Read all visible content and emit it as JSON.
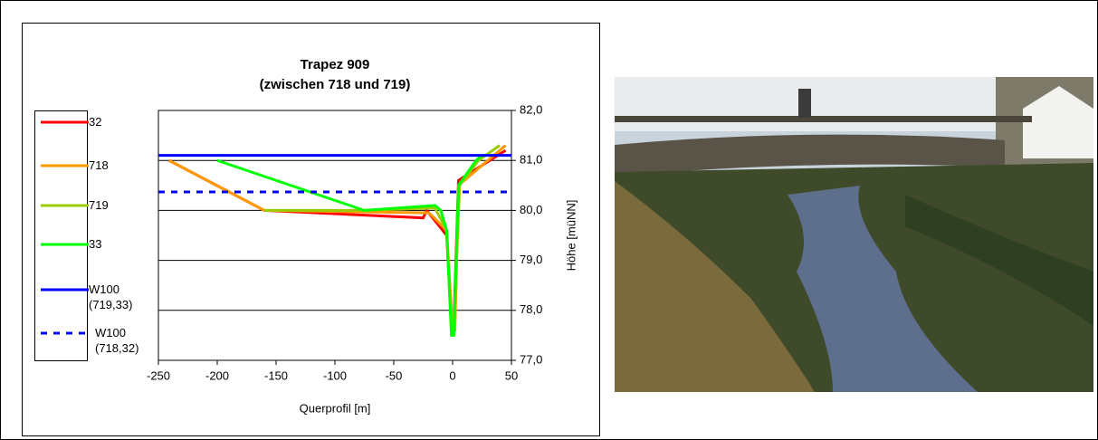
{
  "chart_data": {
    "type": "line",
    "title": "Trapez 909",
    "subtitle": "(zwischen 718 und 719)",
    "xlabel": "Querprofil [m]",
    "ylabel": "Höhe [müNN]",
    "xlim": [
      -250,
      50
    ],
    "xticks": [
      -250,
      -200,
      -150,
      -100,
      -50,
      0,
      50
    ],
    "ylim": [
      77,
      82
    ],
    "yticks": [
      {
        "value": 77,
        "label": "77,0"
      },
      {
        "value": 78,
        "label": "78,0"
      },
      {
        "value": 79,
        "label": "79,0"
      },
      {
        "value": 80,
        "label": "80,0"
      },
      {
        "value": 81,
        "label": "81,0"
      },
      {
        "value": 82,
        "label": "82,0"
      }
    ],
    "grid": true,
    "legend": "left",
    "series": [
      {
        "name": "32",
        "color": "#ff0000",
        "x": [
          -241,
          -160,
          -25,
          -22,
          -5,
          -1,
          1,
          5,
          45
        ],
        "values": [
          81.0,
          80.0,
          79.85,
          80.0,
          79.5,
          77.7,
          77.7,
          80.6,
          81.2
        ]
      },
      {
        "name": "718",
        "color": "#ff9900",
        "x": [
          -241,
          -160,
          -20,
          -5,
          0,
          2,
          5,
          45
        ],
        "values": [
          81.0,
          80.0,
          79.95,
          79.6,
          77.6,
          77.6,
          80.5,
          81.3
        ]
      },
      {
        "name": "719",
        "color": "#99cc00",
        "x": [
          -160,
          -75,
          -15,
          -5,
          -1,
          1,
          6,
          22,
          40
        ],
        "values": [
          80.0,
          80.0,
          80.05,
          79.6,
          77.6,
          77.6,
          80.5,
          81.0,
          81.3
        ]
      },
      {
        "name": "33",
        "color": "#00ff00",
        "x": [
          -200,
          -75,
          -15,
          -10,
          -5,
          -1,
          1,
          5,
          20,
          25
        ],
        "values": [
          81.0,
          80.0,
          80.1,
          80.0,
          79.6,
          77.5,
          77.5,
          80.5,
          81.0,
          81.1
        ]
      },
      {
        "name": "W100 (719,33)",
        "color": "#0000ff",
        "x": [
          -250,
          50
        ],
        "values": [
          81.1,
          81.1
        ]
      },
      {
        "name": "W100 (718,32)",
        "color": "#0000ff",
        "dashed": true,
        "x": [
          -250,
          50
        ],
        "values": [
          80.37,
          80.37
        ]
      }
    ]
  }
}
